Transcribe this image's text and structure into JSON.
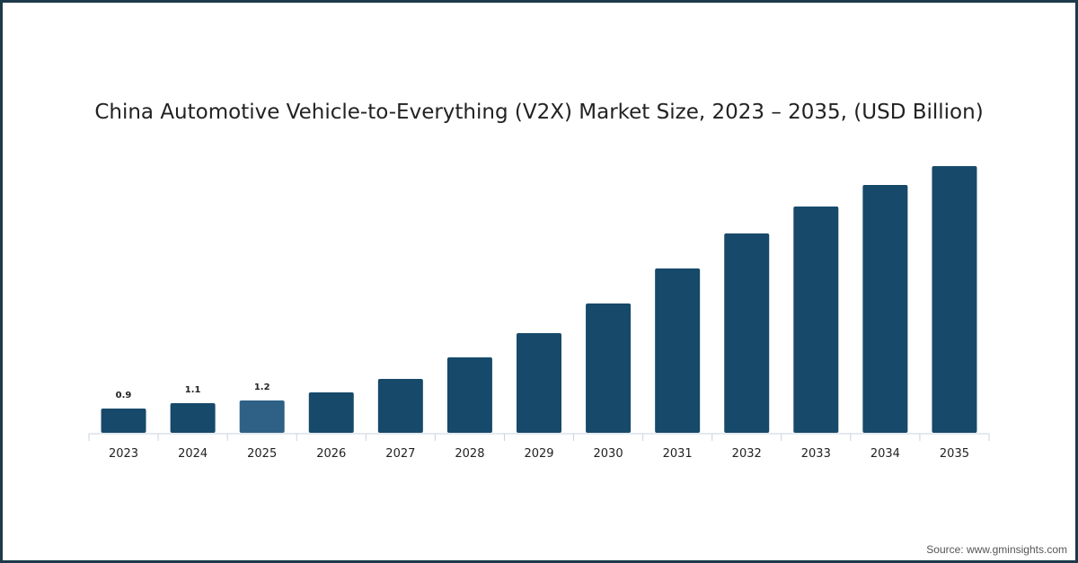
{
  "chart_data": {
    "type": "bar",
    "title": "China Automotive Vehicle-to-Everything (V2X) Market Size, 2023 – 2035, (USD Billion)",
    "xlabel": "",
    "ylabel": "",
    "categories": [
      "2023",
      "2024",
      "2025",
      "2026",
      "2027",
      "2028",
      "2029",
      "2030",
      "2031",
      "2032",
      "2033",
      "2034",
      "2035"
    ],
    "values": [
      0.9,
      1.1,
      1.2,
      1.5,
      2.0,
      2.8,
      3.7,
      4.8,
      6.1,
      7.4,
      8.4,
      9.2,
      9.9
    ],
    "data_labels": [
      "0.9",
      "1.1",
      "1.2",
      "",
      "",
      "",
      "",
      "",
      "",
      "",
      "",
      "",
      ""
    ],
    "highlight_index": 2,
    "colors": {
      "bar": "#16496a",
      "highlight": "#2e6185",
      "axis": "#c8d3de"
    },
    "ylim": [
      0,
      10
    ],
    "grid": false
  },
  "source": "Source: www.gminsights.com"
}
